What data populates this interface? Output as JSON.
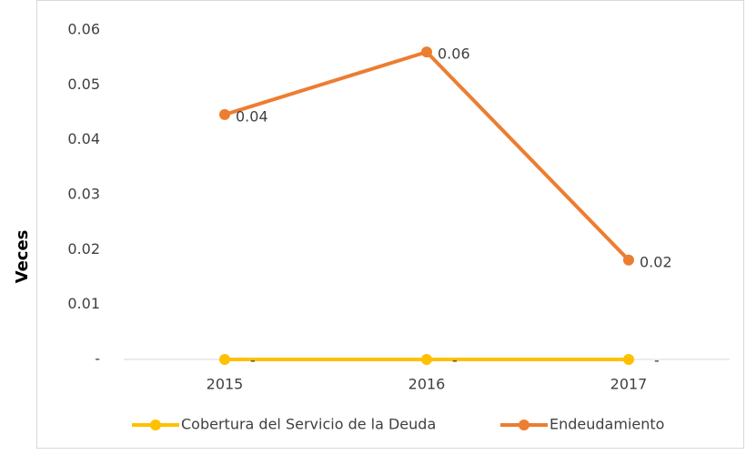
{
  "chart_data": {
    "type": "line",
    "y_label": "Veces",
    "categories": [
      "2015",
      "2016",
      "2017"
    ],
    "series": [
      {
        "name": "Cobertura del Servicio de la Deuda",
        "color": "#FFC000",
        "values": [
          0,
          0,
          0
        ],
        "value_labels": [
          "-",
          "-",
          "-"
        ]
      },
      {
        "name": "Endeudamiento",
        "color": "#ED7D31",
        "values": [
          0.0446,
          0.056,
          0.0181
        ],
        "value_labels": [
          "0.04",
          "0.06",
          "0.02"
        ]
      }
    ],
    "ylim": [
      0,
      0.06
    ],
    "yticks": [
      {
        "value": 0,
        "label": "-"
      },
      0.01,
      0.02,
      0.03,
      0.04,
      0.05,
      0.06
    ],
    "grid": false,
    "legend": "bottom"
  }
}
